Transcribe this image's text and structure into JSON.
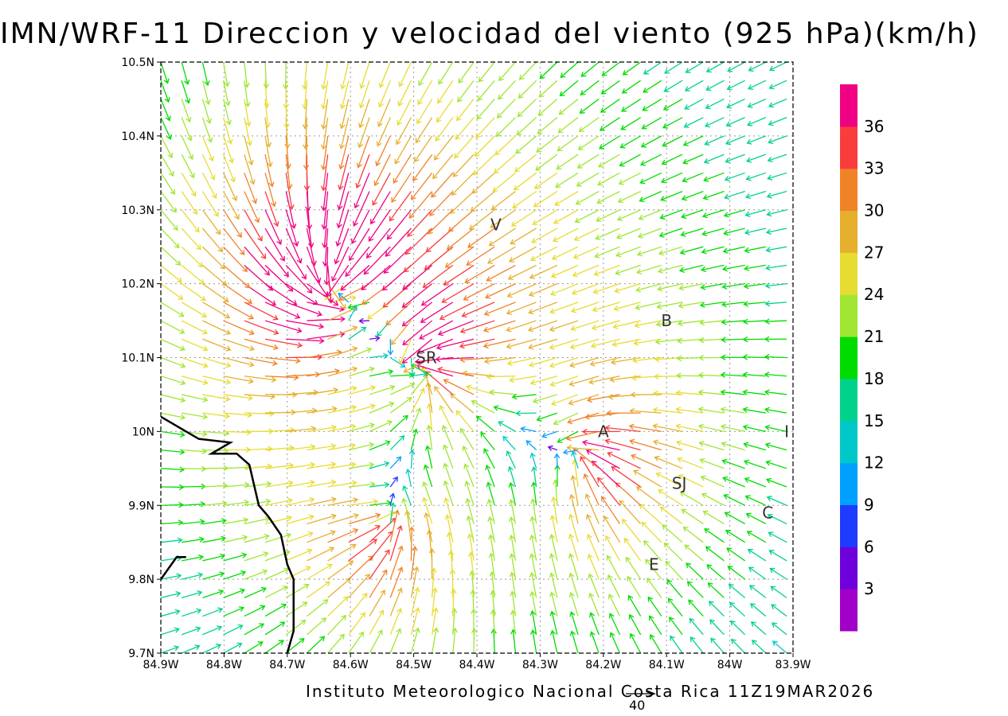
{
  "title": "IMN/WRF-11 Direccion y velocidad del viento (925 hPa)(km/h)",
  "footer": "Instituto Meteorologico Nacional Costa Rica 11Z19MAR2026",
  "reference_vector": {
    "label": "40",
    "speed": 40
  },
  "map": {
    "lon_range": [
      -84.9,
      -83.9
    ],
    "lat_range": [
      9.7,
      10.5
    ],
    "x_ticks": [
      "84.9W",
      "84.8W",
      "84.7W",
      "84.6W",
      "84.5W",
      "84.4W",
      "84.3W",
      "84.2W",
      "84.1W",
      "84W",
      "83.9W"
    ],
    "y_ticks": [
      "9.7N",
      "9.8N",
      "9.9N",
      "10N",
      "10.1N",
      "10.2N",
      "10.3N",
      "10.4N",
      "10.5N"
    ],
    "grid": "dotted",
    "station_labels": [
      {
        "text": "V",
        "lon": -84.37,
        "lat": 10.28
      },
      {
        "text": "SR",
        "lon": -84.48,
        "lat": 10.1
      },
      {
        "text": "B",
        "lon": -84.1,
        "lat": 10.15
      },
      {
        "text": "A",
        "lon": -84.2,
        "lat": 10.0
      },
      {
        "text": "I",
        "lon": -83.91,
        "lat": 10.0
      },
      {
        "text": "SJ",
        "lon": -84.08,
        "lat": 9.93
      },
      {
        "text": "C",
        "lon": -83.94,
        "lat": 9.89
      },
      {
        "text": "E",
        "lon": -84.12,
        "lat": 9.82
      }
    ],
    "coastline": [
      [
        [
          -84.9,
          10.02
        ],
        [
          -84.84,
          9.99
        ],
        [
          -84.79,
          9.985
        ],
        [
          -84.82,
          9.97
        ],
        [
          -84.78,
          9.97
        ],
        [
          -84.76,
          9.955
        ],
        [
          -84.745,
          9.9
        ],
        [
          -84.73,
          9.885
        ],
        [
          -84.71,
          9.86
        ],
        [
          -84.7,
          9.82
        ],
        [
          -84.69,
          9.8
        ],
        [
          -84.69,
          9.73
        ],
        [
          -84.7,
          9.7
        ]
      ],
      [
        [
          -84.9,
          9.8
        ],
        [
          -84.875,
          9.83
        ],
        [
          -84.86,
          9.83
        ]
      ]
    ]
  },
  "colorbar": {
    "labels": [
      "3",
      "6",
      "9",
      "12",
      "15",
      "18",
      "21",
      "24",
      "27",
      "30",
      "33",
      "36"
    ],
    "colors": [
      "#a000c8",
      "#6e00dc",
      "#1e3cff",
      "#00a0ff",
      "#00c8c8",
      "#00d28c",
      "#00dc00",
      "#a0e632",
      "#e6dc32",
      "#e6af2d",
      "#f08228",
      "#fa3c3c",
      "#f00082"
    ]
  },
  "wind_field": {
    "units": "km/h",
    "grid": {
      "lon_start": -84.9,
      "lon_step": 0.033,
      "lon_count": 31,
      "lat_start": 9.7,
      "lat_step": 0.025,
      "lat_count": 33
    },
    "vortices": [
      {
        "lon": -84.63,
        "lat": 10.2,
        "strength": 34
      },
      {
        "lon": -84.48,
        "lat": 10.08,
        "strength": 26
      },
      {
        "lon": -84.22,
        "lat": 9.96,
        "strength": 18
      },
      {
        "lon": -84.55,
        "lat": 9.87,
        "strength": 16
      }
    ]
  }
}
